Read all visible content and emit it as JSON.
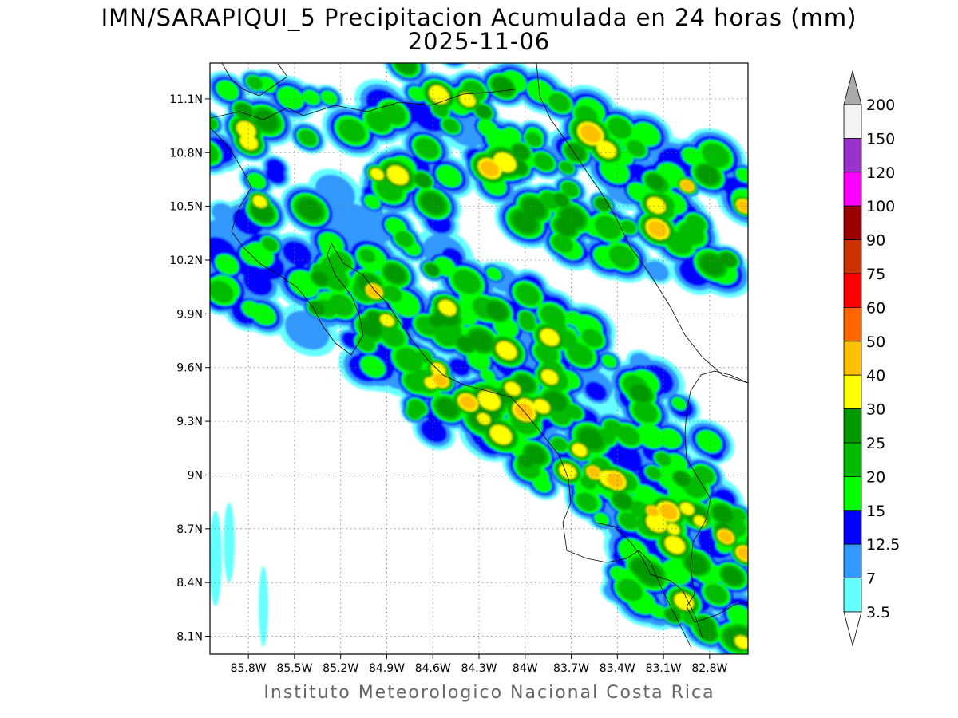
{
  "title": "IMN/SARAPIQUI_5 Precipitacion Acumulada en 24 horas (mm)",
  "date": "2025-11-06",
  "footer": "Instituto Meteorologico Nacional Costa Rica",
  "map": {
    "lon_range": [
      -86.05,
      -82.55
    ],
    "lat_range": [
      8.0,
      11.3
    ],
    "lon_ticks": [
      {
        "value": -85.8,
        "label": "85.8W"
      },
      {
        "value": -85.5,
        "label": "85.5W"
      },
      {
        "value": -85.2,
        "label": "85.2W"
      },
      {
        "value": -84.9,
        "label": "84.9W"
      },
      {
        "value": -84.6,
        "label": "84.6W"
      },
      {
        "value": -84.3,
        "label": "84.3W"
      },
      {
        "value": -84.0,
        "label": "84W"
      },
      {
        "value": -83.7,
        "label": "83.7W"
      },
      {
        "value": -83.4,
        "label": "83.4W"
      },
      {
        "value": -83.1,
        "label": "83.1W"
      },
      {
        "value": -82.8,
        "label": "82.8W"
      }
    ],
    "lat_ticks": [
      {
        "value": 11.1,
        "label": "11.1N"
      },
      {
        "value": 10.8,
        "label": "10.8N"
      },
      {
        "value": 10.5,
        "label": "10.5N"
      },
      {
        "value": 10.2,
        "label": "10.2N"
      },
      {
        "value": 9.9,
        "label": "9.9N"
      },
      {
        "value": 9.6,
        "label": "9.6N"
      },
      {
        "value": 9.3,
        "label": "9.3N"
      },
      {
        "value": 9.0,
        "label": "9N"
      },
      {
        "value": 8.7,
        "label": "8.7N"
      },
      {
        "value": 8.4,
        "label": "8.4N"
      },
      {
        "value": 8.1,
        "label": "8.1N"
      }
    ],
    "grid": "dotted",
    "legend": "right"
  },
  "colorbar": {
    "levels": [
      "200",
      "150",
      "120",
      "100",
      "90",
      "75",
      "60",
      "50",
      "40",
      "30",
      "25",
      "20",
      "15",
      "12.5",
      "7",
      "3.5"
    ],
    "colors": [
      "#f4f4f4",
      "#9933cc",
      "#ff00ff",
      "#990000",
      "#cc3300",
      "#ff0000",
      "#ff6600",
      "#ffc000",
      "#ffff00",
      "#009900",
      "#00bb00",
      "#00ff00",
      "#0000ff",
      "#3399ff",
      "#66ffff"
    ],
    "over_color": "#aaaaaa",
    "under_color": "#ffffff"
  }
}
